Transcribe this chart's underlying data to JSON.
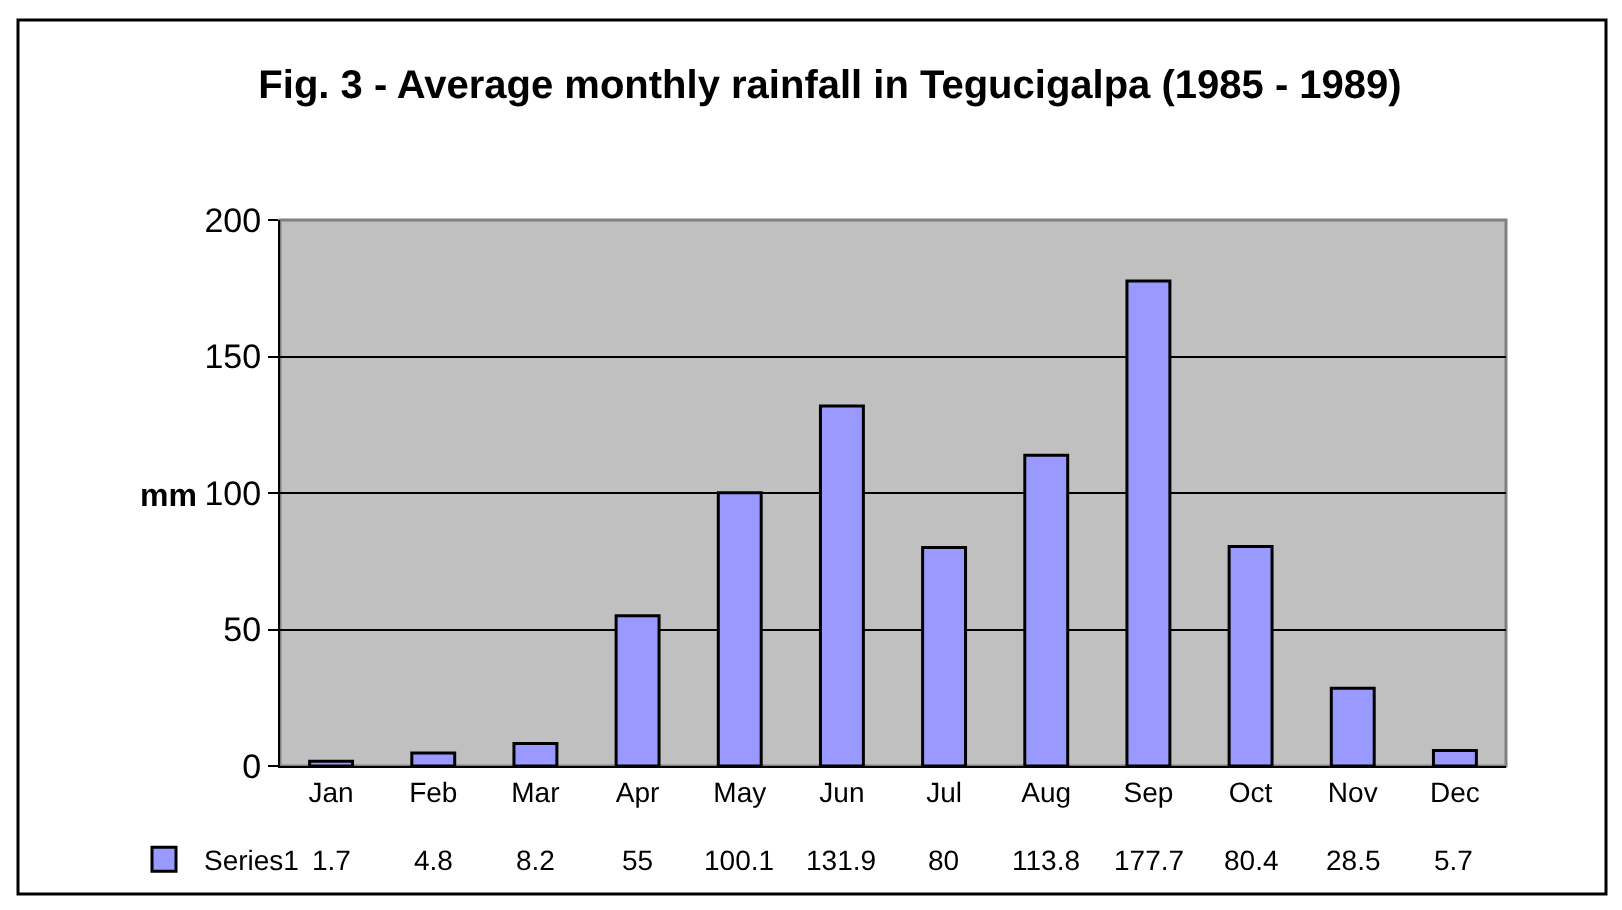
{
  "chart_data": {
    "type": "bar",
    "title": "Fig. 3 - Average monthly rainfall in Tegucigalpa (1985 - 1989)",
    "ylabel": "mm",
    "categories": [
      "Jan",
      "Feb",
      "Mar",
      "Apr",
      "May",
      "Jun",
      "Jul",
      "Aug",
      "Sep",
      "Oct",
      "Nov",
      "Dec"
    ],
    "series": [
      {
        "name": "Series1",
        "color": "#9999ff",
        "values": [
          1.7,
          4.8,
          8.2,
          55,
          100.1,
          131.9,
          80,
          113.8,
          177.7,
          80.4,
          28.5,
          5.7
        ]
      }
    ],
    "ylim": [
      0,
      200
    ],
    "yticks": [
      0,
      50,
      100,
      150,
      200
    ],
    "grid": "y",
    "legend": "bottom left",
    "data_labels": true
  }
}
